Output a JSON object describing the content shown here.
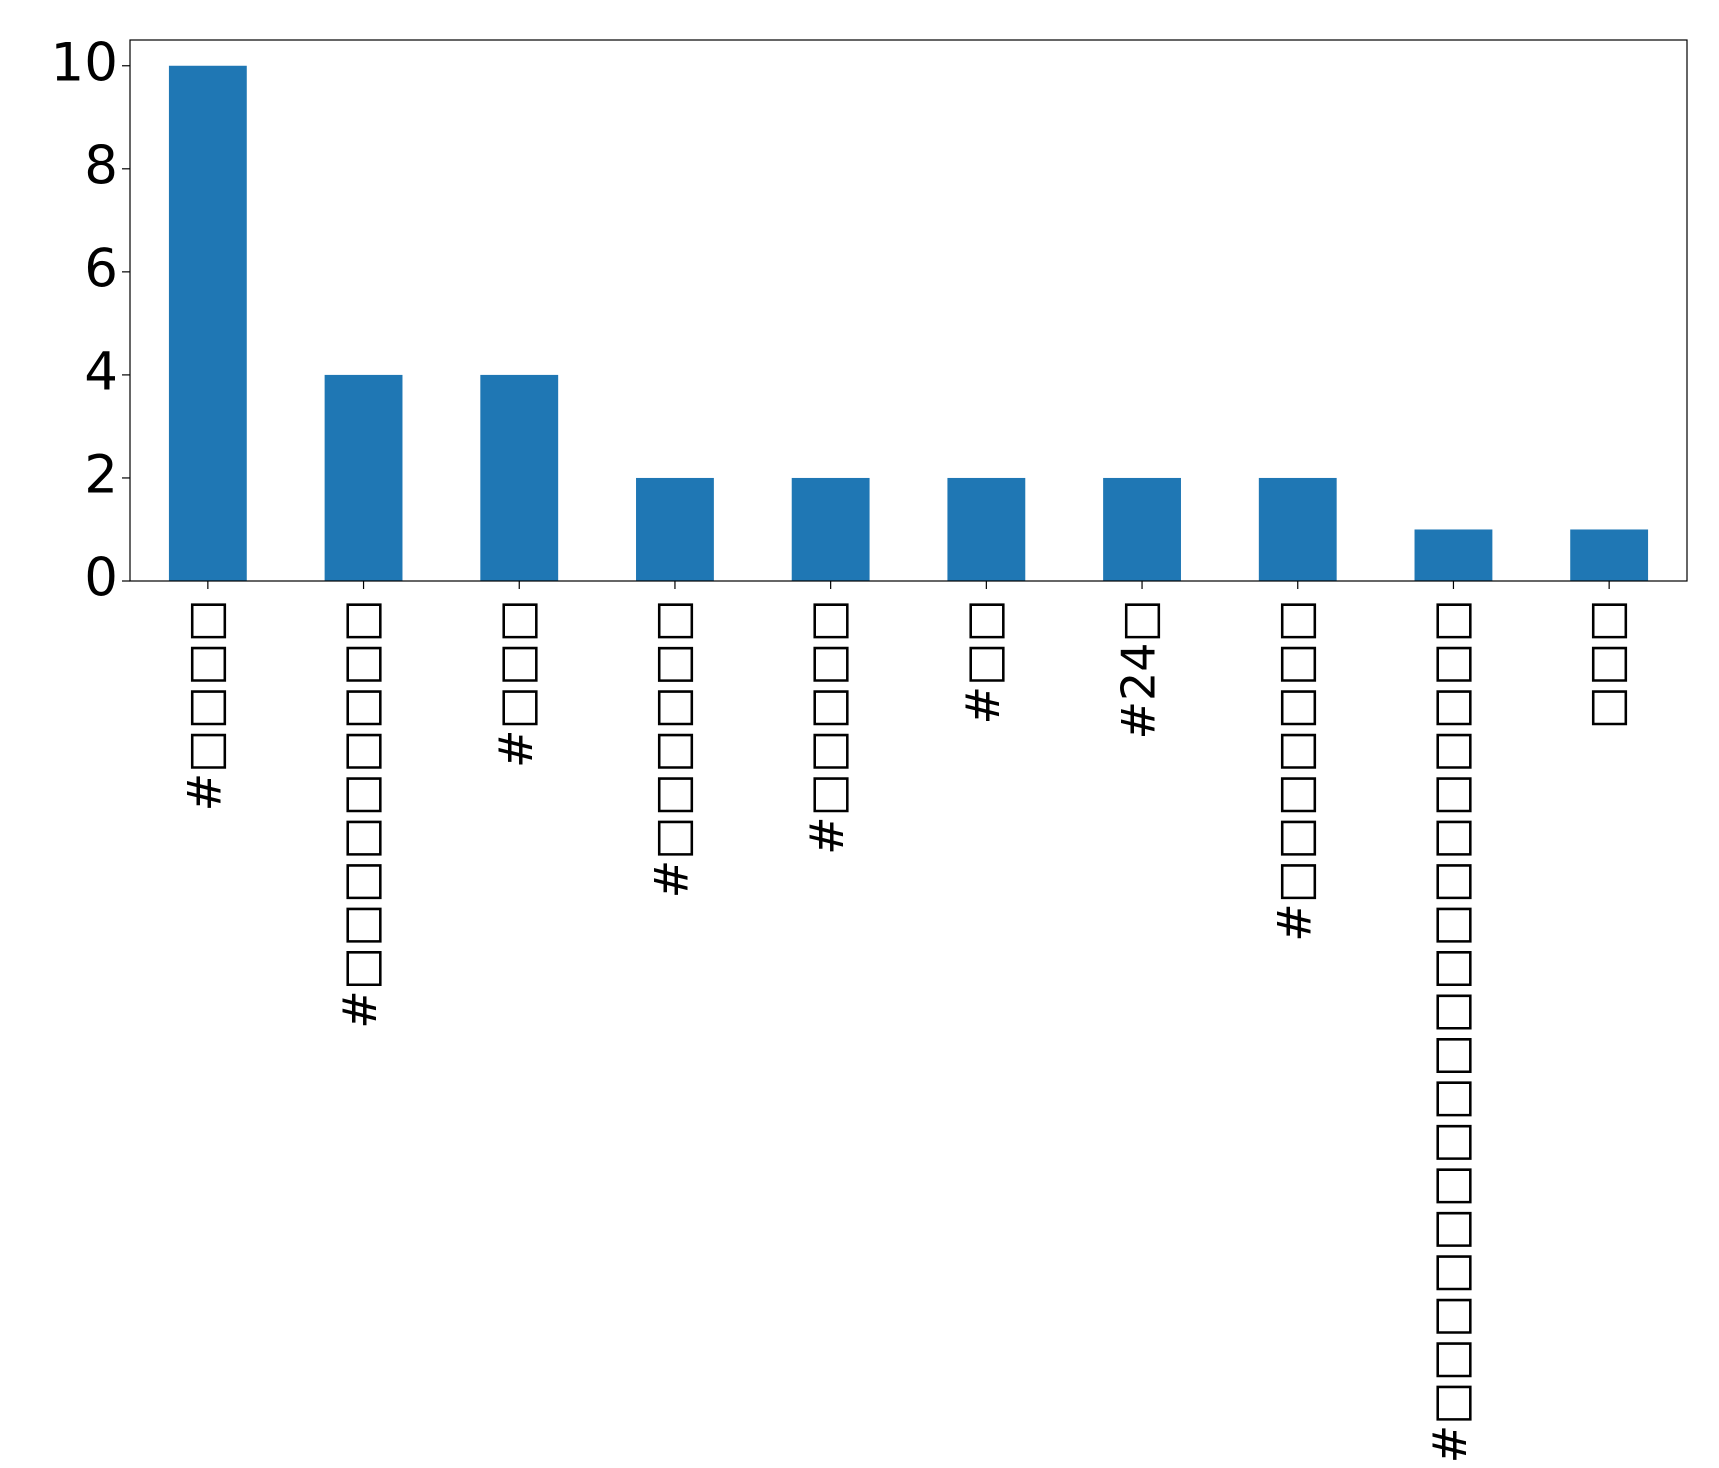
{
  "chart_data": {
    "type": "bar",
    "categories": [
      "#□□□□",
      "#□□□□□□□□□",
      "#□□□",
      "#□□□□□□",
      "#□□□□□",
      "#□□",
      "#24□",
      "#□□□□□□□",
      "#□□□□□□□□□□□□□□□□□□□",
      "□□□"
    ],
    "values": [
      10,
      4,
      4,
      2,
      2,
      2,
      2,
      2,
      1,
      1
    ],
    "color": "#1f77b4",
    "ylim": [
      0,
      10.5
    ],
    "yticks": [
      0,
      2,
      4,
      6,
      8,
      10
    ],
    "grid": false
  }
}
